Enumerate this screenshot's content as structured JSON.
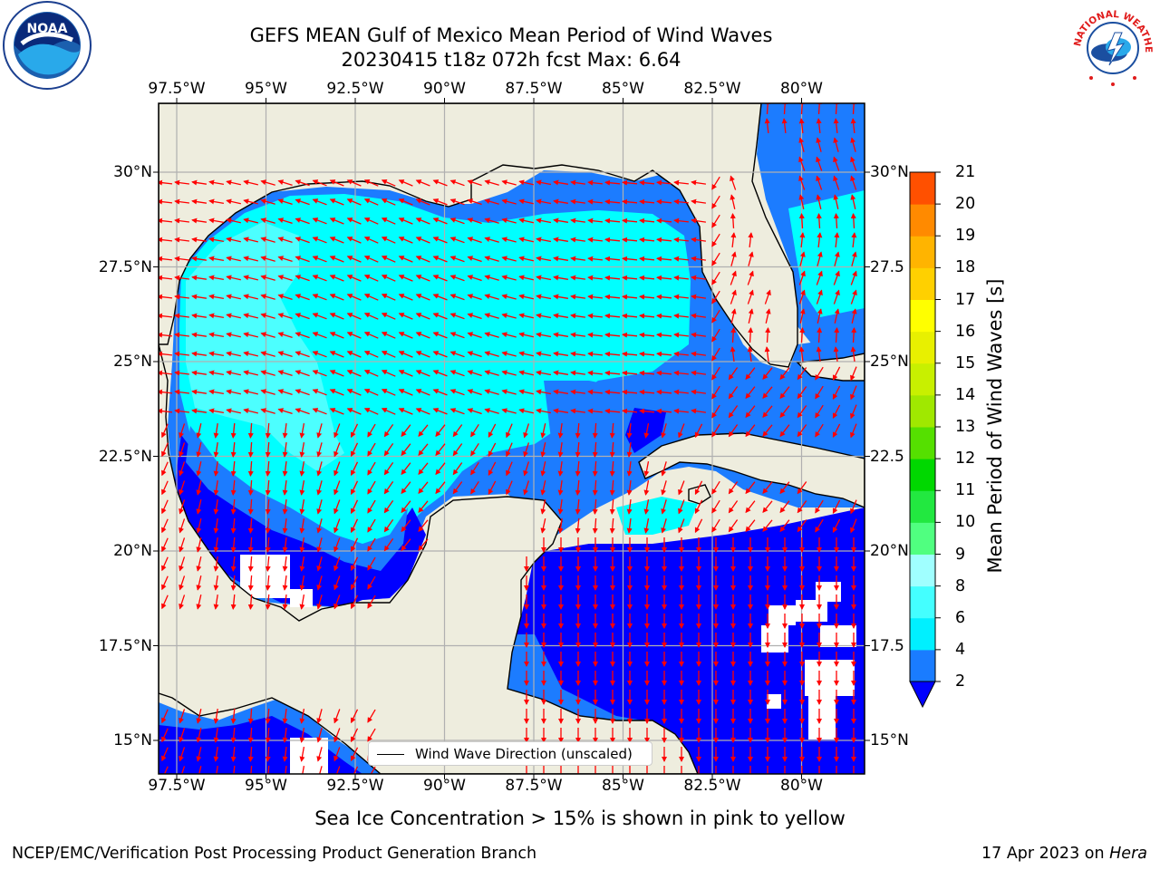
{
  "header": {
    "title_line1": "GEFS MEAN Gulf of Mexico Mean Period of Wind Waves",
    "title_line2": "20230415 t18z 072h fcst   Max: 6.64"
  },
  "map": {
    "lon_ticks": [
      "97.5°W",
      "95°W",
      "92.5°W",
      "90°W",
      "87.5°W",
      "85°W",
      "82.5°W",
      "80°W"
    ],
    "lat_ticks_left": [
      "30°N",
      "27.5°N",
      "25°N",
      "22.5°N",
      "20°N",
      "17.5°N",
      "15°N"
    ],
    "lat_ticks_right": [
      "30°N",
      "27.5",
      "25°N",
      "22.5",
      "20°N",
      "17.5",
      "15°N"
    ],
    "colors": {
      "land": "#eeedde",
      "ocean_blue": "#0000ff",
      "blue_2_4": "#1c7cff",
      "cyan_4_6": "#00ffff",
      "cyan_6_8": "#4cffff",
      "arrow": "#ff0000",
      "grid": "#b0b0b0"
    }
  },
  "legend": {
    "label": "Wind Wave Direction (unscaled)"
  },
  "colorbar": {
    "label": "Mean Period of Wind Waves [s]",
    "ticks": [
      "21",
      "20",
      "19",
      "18",
      "17",
      "16",
      "15",
      "14",
      "13",
      "12",
      "11",
      "10",
      "9",
      "8",
      "6",
      "4",
      "2"
    ],
    "levels": [
      2,
      4,
      6,
      8,
      9,
      10,
      11,
      12,
      13,
      14,
      15,
      16,
      17,
      18,
      19,
      20,
      21
    ],
    "colors": [
      "#1a7cff",
      "#00f0ff",
      "#44ffff",
      "#a0ffff",
      "#50ff80",
      "#22e840",
      "#00d800",
      "#55e000",
      "#a0e800",
      "#c8f000",
      "#e8f000",
      "#ffff00",
      "#ffd000",
      "#ffb400",
      "#ff8a00",
      "#ff5000",
      "#ff2000",
      "#ff0000"
    ]
  },
  "notes": {
    "sea_ice": "Sea Ice Concentration > 15% is shown in pink to yellow"
  },
  "footer": {
    "left": "NCEP/EMC/Verification Post Processing Product Generation Branch",
    "date": "17 Apr 2023 on ",
    "machine": "Hera"
  },
  "logos": {
    "noaa_text": "NOAA",
    "nws_text": "NATIONAL WEATHER SERVICE"
  }
}
